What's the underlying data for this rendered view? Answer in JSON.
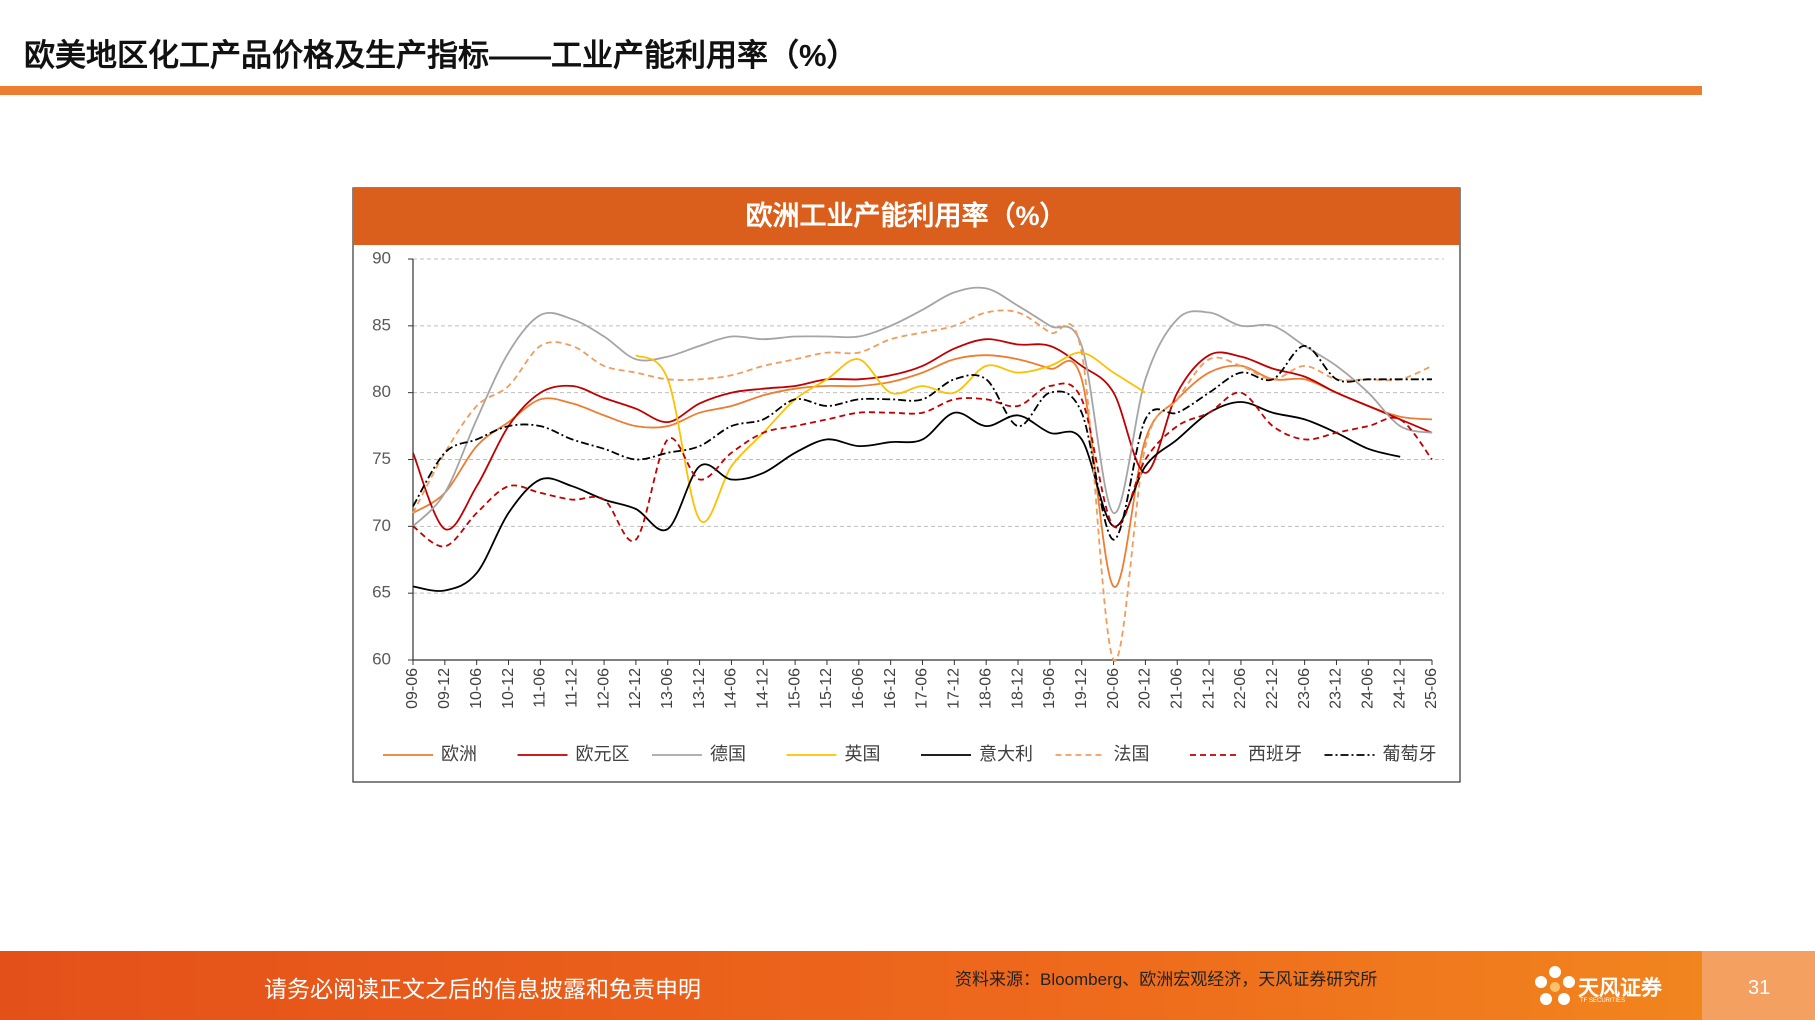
{
  "header": {
    "title": "欧美地区化工产品价格及生产指标——工业产能利用率（%）"
  },
  "chart_data": {
    "type": "line",
    "title": "欧洲工业产能利用率（%）",
    "categories": [
      "09-06",
      "09-12",
      "10-06",
      "10-12",
      "11-06",
      "11-12",
      "12-06",
      "12-12",
      "13-06",
      "13-12",
      "14-06",
      "14-12",
      "15-06",
      "15-12",
      "16-06",
      "16-12",
      "17-06",
      "17-12",
      "18-06",
      "18-12",
      "19-06",
      "19-12",
      "20-06",
      "20-12",
      "21-06",
      "21-12",
      "22-06",
      "22-12",
      "23-06",
      "23-12",
      "24-06",
      "24-12",
      "25-06"
    ],
    "ylim": [
      60,
      90
    ],
    "yticks": [
      60,
      65,
      70,
      75,
      80,
      85,
      90
    ],
    "grid": true,
    "smooth": true,
    "legend": "bottom",
    "series": [
      {
        "name": "欧洲",
        "color": "#ed7d31",
        "dash": "solid",
        "values": [
          71,
          72.5,
          76,
          77.8,
          79.5,
          79.2,
          78.3,
          77.5,
          77.5,
          78.5,
          79,
          79.8,
          80.3,
          80.5,
          80.5,
          80.8,
          81.5,
          82.5,
          82.8,
          82.5,
          81.8,
          81,
          65.5,
          76.5,
          79.5,
          81.5,
          82,
          81,
          81,
          80,
          79,
          78.2,
          78
        ]
      },
      {
        "name": "欧元区",
        "color": "#c00000",
        "dash": "solid",
        "values": [
          75.5,
          69.8,
          73,
          77.5,
          80,
          80.5,
          79.6,
          78.8,
          77.8,
          79.2,
          80,
          80.3,
          80.5,
          81,
          81,
          81.3,
          82,
          83.3,
          84,
          83.6,
          83.5,
          82,
          80,
          74,
          80,
          82.8,
          82.7,
          81.8,
          81.2,
          80,
          79,
          78,
          77
        ]
      },
      {
        "name": "德国",
        "color": "#a5a5a5",
        "dash": "solid",
        "values": [
          70,
          72.5,
          78,
          83,
          85.8,
          85.5,
          84.2,
          82.5,
          82.7,
          83.5,
          84.2,
          84,
          84.2,
          84.2,
          84.2,
          85,
          86.2,
          87.5,
          87.8,
          86.5,
          85,
          83.5,
          71,
          81,
          85.5,
          86,
          85,
          85,
          83.5,
          82,
          80,
          77.5,
          77
        ]
      },
      {
        "name": "英国",
        "color": "#ffc000",
        "dash": "solid",
        "values": [
          null,
          null,
          null,
          null,
          null,
          null,
          null,
          82.8,
          81,
          70.5,
          74.5,
          77,
          79.5,
          81,
          82.5,
          80,
          80.5,
          80,
          82,
          81.5,
          82,
          83,
          81.5,
          80,
          null,
          null,
          null,
          null,
          null,
          null,
          null,
          null,
          null
        ]
      },
      {
        "name": "意大利",
        "color": "#000000",
        "dash": "solid",
        "values": [
          65.5,
          65.2,
          66.5,
          71,
          73.5,
          73,
          72,
          71.3,
          69.8,
          74.5,
          73.5,
          74,
          75.5,
          76.5,
          76,
          76.3,
          76.5,
          78.5,
          77.5,
          78.3,
          77,
          76.5,
          70,
          74.5,
          76.5,
          78.5,
          79.3,
          78.5,
          78,
          77,
          75.8,
          75.2,
          null
        ]
      },
      {
        "name": "法国",
        "color": "#f19c5b",
        "dash": "dashed",
        "values": [
          71,
          75.5,
          79,
          80.5,
          83.5,
          83.5,
          82,
          81.5,
          81,
          81,
          81.3,
          82,
          82.5,
          83,
          83,
          84,
          84.5,
          85,
          86,
          86,
          84.5,
          83,
          60,
          76,
          79.5,
          82.5,
          82,
          81,
          82,
          81,
          81,
          81,
          82
        ]
      },
      {
        "name": "西班牙",
        "color": "#c00000",
        "dash": "dashed",
        "values": [
          70,
          68.5,
          71,
          73,
          72.5,
          72,
          72,
          69,
          76.5,
          73.5,
          75.5,
          77,
          77.5,
          78,
          78.5,
          78.5,
          78.5,
          79.5,
          79.5,
          79,
          80.5,
          79.5,
          70,
          75,
          77.5,
          78.5,
          80,
          77.5,
          76.5,
          77,
          77.5,
          78,
          75
        ]
      },
      {
        "name": "葡萄牙",
        "color": "#000000",
        "dash": "dashdot",
        "values": [
          71.5,
          75.5,
          76.5,
          77.5,
          77.5,
          76.5,
          75.8,
          75,
          75.5,
          76,
          77.5,
          78,
          79.5,
          79,
          79.5,
          79.5,
          79.5,
          81,
          81,
          77.5,
          80,
          78.5,
          69,
          78,
          78.5,
          80,
          81.5,
          81,
          83.5,
          81,
          81,
          81,
          81
        ]
      }
    ]
  },
  "footer": {
    "disclaimer": "请务必阅读正文之后的信息披露和免责申明",
    "source": "资料来源：Bloomberg、欧洲宏观经济，天风证券研究所",
    "logo": "天风证券",
    "logo_sub": "TF SECURITIES",
    "page": 31
  }
}
